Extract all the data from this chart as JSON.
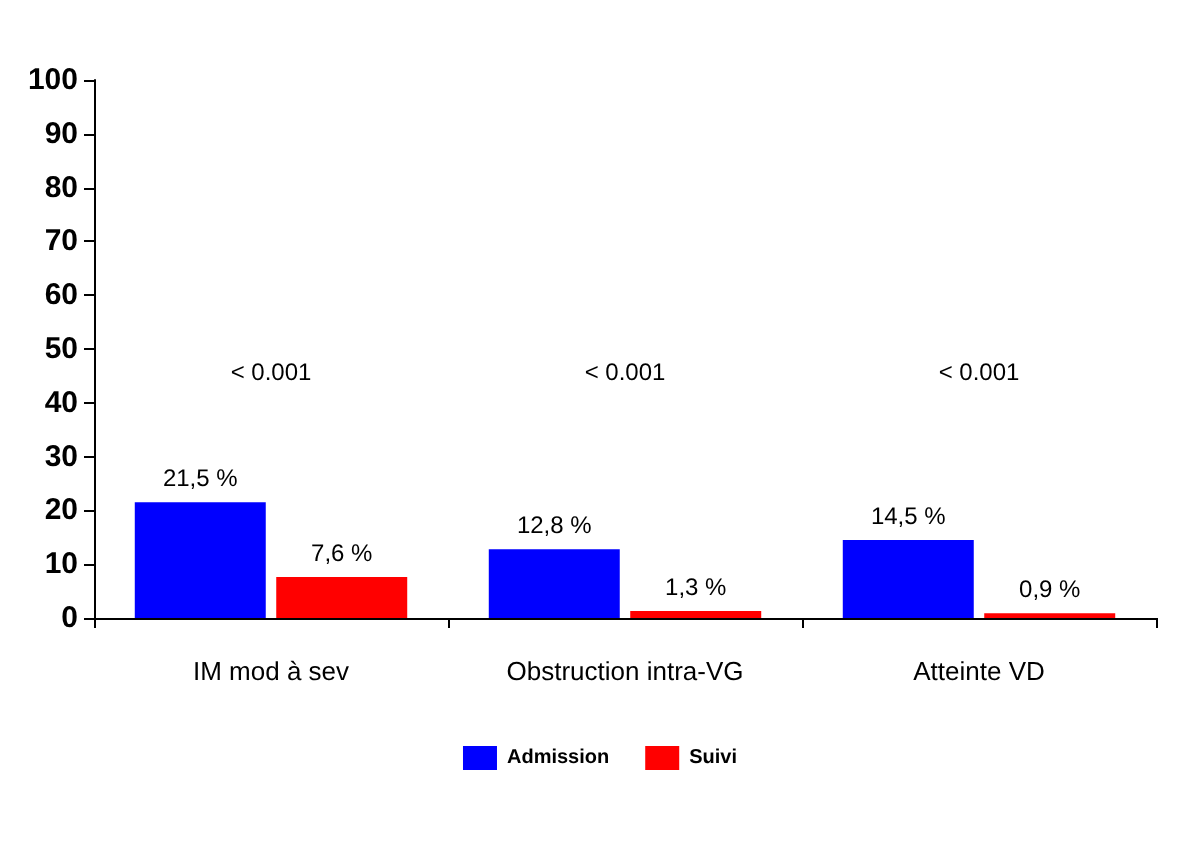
{
  "chart_data": {
    "type": "bar",
    "categories": [
      "IM mod à sev",
      "Obstruction intra-VG",
      "Atteinte VD"
    ],
    "series": [
      {
        "name": "Admission",
        "color": "#0000ff",
        "values": [
          21.5,
          12.8,
          14.5
        ],
        "value_labels": [
          "21,5 %",
          "12,8 %",
          "14,5 %"
        ]
      },
      {
        "name": "Suivi",
        "color": "#ff0000",
        "values": [
          7.6,
          1.3,
          0.9
        ],
        "value_labels": [
          "7,6 %",
          "1,3 %",
          "0,9 %"
        ]
      }
    ],
    "annotations": [
      "< 0.001",
      "< 0.001",
      "< 0.001"
    ],
    "ylim": [
      0,
      100
    ],
    "yticks": [
      0,
      10,
      20,
      30,
      40,
      50,
      60,
      70,
      80,
      90,
      100
    ],
    "grid": false,
    "legend": "bottom"
  }
}
